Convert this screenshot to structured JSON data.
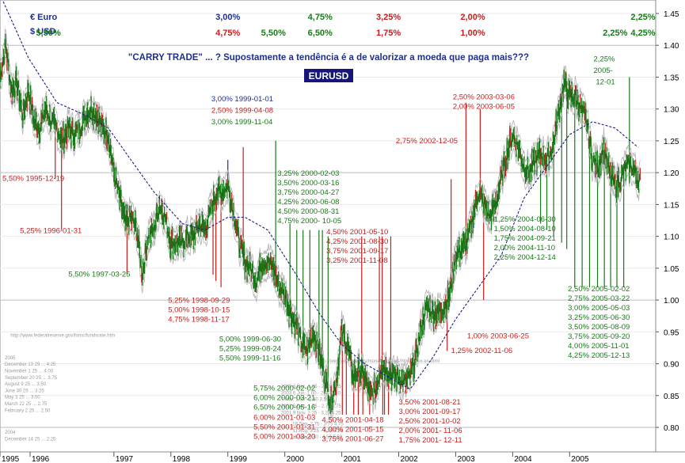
{
  "chart_data": {
    "type": "line",
    "title": "EURUSD",
    "subtitle": "\"CARRY TRADE\" ...  ? Supostamente a tendência é a de valorizar a moeda que paga mais???",
    "legend": {
      "euro": "€  Euro",
      "usd": "$  USD"
    },
    "ylim": [
      0.775,
      1.475
    ],
    "yticks": [
      "1.45",
      "1.40",
      "1.35",
      "1.30",
      "1.25",
      "1.20",
      "1.15",
      "1.10",
      "1.05",
      "1.00",
      "0.95",
      "0.90",
      "0.85",
      "0.80"
    ],
    "xticks": [
      "1995",
      "1996",
      "1997",
      "1998",
      "1999",
      "2000",
      "2001",
      "2002",
      "2003",
      "2004",
      "2005"
    ],
    "grid": true,
    "header_rates": [
      {
        "text": "5,50%",
        "t": 1995.85,
        "row": "usd",
        "color": "#1a7a1a"
      },
      {
        "text": "3,00%",
        "t": 1999.0,
        "row": "euro",
        "color": "#1e2f8e"
      },
      {
        "text": "4,75%",
        "t": 1999.0,
        "row": "usd",
        "color": "#c81e1e"
      },
      {
        "text": "5,50%",
        "t": 1999.8,
        "row": "usd",
        "color": "#1a7a1a"
      },
      {
        "text": "4,75%",
        "t": 2000.62,
        "row": "euro",
        "color": "#1a7a1a"
      },
      {
        "text": "6,50%",
        "t": 2000.62,
        "row": "usd",
        "color": "#1a7a1a"
      },
      {
        "text": "3,25%",
        "t": 2001.82,
        "row": "euro",
        "color": "#c81e1e"
      },
      {
        "text": "1,75%",
        "t": 2001.82,
        "row": "usd",
        "color": "#c81e1e"
      },
      {
        "text": "2,00%",
        "t": 2003.3,
        "row": "euro",
        "color": "#c81e1e"
      },
      {
        "text": "1,00%",
        "t": 2003.3,
        "row": "usd",
        "color": "#c81e1e"
      },
      {
        "text": "2,25%",
        "t": 2005.8,
        "row": "usd",
        "color": "#1a7a1a"
      },
      {
        "text": "2,25%",
        "t": 2006.4,
        "row": "euro",
        "color": "#1a7a1a"
      },
      {
        "text": "4,25%",
        "t": 2006.4,
        "row": "usd",
        "color": "#1a7a1a"
      }
    ],
    "price_points": [
      [
        1995.0,
        1.35
      ],
      [
        1995.1,
        1.4
      ],
      [
        1995.2,
        1.33
      ],
      [
        1995.3,
        1.34
      ],
      [
        1995.4,
        1.29
      ],
      [
        1995.5,
        1.33
      ],
      [
        1995.6,
        1.28
      ],
      [
        1995.7,
        1.27
      ],
      [
        1995.8,
        1.3
      ],
      [
        1995.9,
        1.28
      ],
      [
        1996.0,
        1.27
      ],
      [
        1996.1,
        1.25
      ],
      [
        1996.2,
        1.27
      ],
      [
        1996.3,
        1.26
      ],
      [
        1996.4,
        1.27
      ],
      [
        1996.5,
        1.29
      ],
      [
        1996.6,
        1.3
      ],
      [
        1996.7,
        1.29
      ],
      [
        1996.8,
        1.27
      ],
      [
        1996.9,
        1.26
      ],
      [
        1997.0,
        1.2
      ],
      [
        1997.1,
        1.16
      ],
      [
        1997.2,
        1.12
      ],
      [
        1997.3,
        1.13
      ],
      [
        1997.4,
        1.11
      ],
      [
        1997.5,
        1.04
      ],
      [
        1997.6,
        1.1
      ],
      [
        1997.7,
        1.11
      ],
      [
        1997.8,
        1.15
      ],
      [
        1997.9,
        1.13
      ],
      [
        1998.0,
        1.09
      ],
      [
        1998.1,
        1.09
      ],
      [
        1998.2,
        1.09
      ],
      [
        1998.3,
        1.1
      ],
      [
        1998.4,
        1.1
      ],
      [
        1998.5,
        1.12
      ],
      [
        1998.6,
        1.11
      ],
      [
        1998.7,
        1.14
      ],
      [
        1998.8,
        1.17
      ],
      [
        1998.9,
        1.17
      ],
      [
        1999.0,
        1.18
      ],
      [
        1999.1,
        1.14
      ],
      [
        1999.2,
        1.09
      ],
      [
        1999.3,
        1.06
      ],
      [
        1999.4,
        1.05
      ],
      [
        1999.5,
        1.03
      ],
      [
        1999.6,
        1.06
      ],
      [
        1999.7,
        1.06
      ],
      [
        1999.8,
        1.05
      ],
      [
        1999.9,
        1.02
      ],
      [
        2000.0,
        1.01
      ],
      [
        2000.1,
        0.98
      ],
      [
        2000.2,
        0.96
      ],
      [
        2000.3,
        0.93
      ],
      [
        2000.4,
        0.92
      ],
      [
        2000.5,
        0.95
      ],
      [
        2000.6,
        0.92
      ],
      [
        2000.7,
        0.88
      ],
      [
        2000.8,
        0.84
      ],
      [
        2000.9,
        0.87
      ],
      [
        2001.0,
        0.95
      ],
      [
        2001.1,
        0.93
      ],
      [
        2001.2,
        0.88
      ],
      [
        2001.3,
        0.89
      ],
      [
        2001.4,
        0.88
      ],
      [
        2001.5,
        0.85
      ],
      [
        2001.6,
        0.86
      ],
      [
        2001.7,
        0.9
      ],
      [
        2001.8,
        0.89
      ],
      [
        2001.9,
        0.88
      ],
      [
        2002.0,
        0.88
      ],
      [
        2002.1,
        0.87
      ],
      [
        2002.2,
        0.88
      ],
      [
        2002.3,
        0.91
      ],
      [
        2002.4,
        0.96
      ],
      [
        2002.5,
        0.99
      ],
      [
        2002.6,
        0.98
      ],
      [
        2002.7,
        0.98
      ],
      [
        2002.8,
        0.99
      ],
      [
        2002.9,
        1.01
      ],
      [
        2003.0,
        1.07
      ],
      [
        2003.1,
        1.08
      ],
      [
        2003.2,
        1.09
      ],
      [
        2003.3,
        1.13
      ],
      [
        2003.4,
        1.17
      ],
      [
        2003.5,
        1.15
      ],
      [
        2003.6,
        1.13
      ],
      [
        2003.7,
        1.15
      ],
      [
        2003.8,
        1.19
      ],
      [
        2003.9,
        1.23
      ],
      [
        2004.0,
        1.26
      ],
      [
        2004.1,
        1.24
      ],
      [
        2004.2,
        1.21
      ],
      [
        2004.3,
        1.2
      ],
      [
        2004.4,
        1.22
      ],
      [
        2004.5,
        1.23
      ],
      [
        2004.6,
        1.22
      ],
      [
        2004.7,
        1.24
      ],
      [
        2004.8,
        1.29
      ],
      [
        2004.9,
        1.34
      ],
      [
        2005.0,
        1.32
      ],
      [
        2005.1,
        1.32
      ],
      [
        2005.2,
        1.3
      ],
      [
        2005.3,
        1.28
      ],
      [
        2005.4,
        1.22
      ],
      [
        2005.5,
        1.21
      ],
      [
        2005.6,
        1.24
      ],
      [
        2005.7,
        1.2
      ],
      [
        2005.8,
        1.18
      ],
      [
        2005.9,
        1.19
      ],
      [
        2006.0,
        1.21
      ],
      [
        2006.1,
        1.21
      ],
      [
        2006.2,
        1.19
      ],
      [
        2006.25,
        1.19
      ]
    ],
    "moving_average": [
      [
        1995.0,
        1.48
      ],
      [
        1995.5,
        1.38
      ],
      [
        1996.0,
        1.31
      ],
      [
        1996.5,
        1.29
      ],
      [
        1996.9,
        1.27
      ],
      [
        1997.3,
        1.22
      ],
      [
        1997.7,
        1.17
      ],
      [
        1998.2,
        1.12
      ],
      [
        1998.6,
        1.11
      ],
      [
        1999.0,
        1.13
      ],
      [
        1999.3,
        1.13
      ],
      [
        1999.7,
        1.11
      ],
      [
        2000.2,
        1.04
      ],
      [
        2000.6,
        0.98
      ],
      [
        2001.0,
        0.93
      ],
      [
        2001.4,
        0.9
      ],
      [
        2001.8,
        0.88
      ],
      [
        2002.2,
        0.86
      ],
      [
        2002.6,
        0.91
      ],
      [
        2003.0,
        0.97
      ],
      [
        2003.4,
        1.02
      ],
      [
        2003.8,
        1.07
      ],
      [
        2004.2,
        1.16
      ],
      [
        2004.6,
        1.21
      ],
      [
        2005.0,
        1.26
      ],
      [
        2005.4,
        1.28
      ],
      [
        2005.8,
        1.27
      ],
      [
        2006.2,
        1.24
      ]
    ],
    "rate_lines": [
      {
        "t": 1995.97,
        "y": 1.19,
        "color": "#c81e1e"
      },
      {
        "t": 1996.08,
        "y": 1.11,
        "color": "#c81e1e"
      },
      {
        "t": 1997.23,
        "y": 1.04,
        "color": "#c81e1e"
      },
      {
        "t": 1998.74,
        "y": 1.04,
        "color": "#c81e1e"
      },
      {
        "t": 1998.79,
        "y": 1.03,
        "color": "#c81e1e"
      },
      {
        "t": 1998.88,
        "y": 1.02,
        "color": "#c81e1e"
      },
      {
        "t": 1999.0,
        "y": 1.22,
        "color": "#1e2f8e"
      },
      {
        "t": 1999.27,
        "y": 1.24,
        "color": "#c81e1e"
      },
      {
        "t": 1999.84,
        "y": 1.25,
        "color": "#1a7a1a"
      },
      {
        "t": 2000.09,
        "y": 1.12,
        "color": "#1a7a1a"
      },
      {
        "t": 2000.21,
        "y": 1.11,
        "color": "#1a7a1a"
      },
      {
        "t": 2000.32,
        "y": 1.11,
        "color": "#1a7a1a"
      },
      {
        "t": 2000.44,
        "y": 1.11,
        "color": "#1a7a1a"
      },
      {
        "t": 2000.6,
        "y": 1.11,
        "color": "#1a7a1a"
      },
      {
        "t": 2000.66,
        "y": 1.11,
        "color": "#1a7a1a"
      },
      {
        "t": 2000.76,
        "y": 1.1,
        "color": "#1a7a1a"
      },
      {
        "t": 2001.35,
        "y": 1.1,
        "color": "#c81e1e"
      },
      {
        "t": 2001.66,
        "y": 1.1,
        "color": "#c81e1e"
      },
      {
        "t": 2001.71,
        "y": 1.1,
        "color": "#c81e1e"
      },
      {
        "t": 2001.86,
        "y": 1.1,
        "color": "#c81e1e"
      },
      {
        "t": 2001.01,
        "y": 0.82,
        "color": "#c81e1e"
      },
      {
        "t": 2001.08,
        "y": 0.82,
        "color": "#c81e1e"
      },
      {
        "t": 2001.21,
        "y": 0.82,
        "color": "#c81e1e"
      },
      {
        "t": 2001.29,
        "y": 0.82,
        "color": "#c81e1e"
      },
      {
        "t": 2001.37,
        "y": 0.82,
        "color": "#c81e1e"
      },
      {
        "t": 2001.49,
        "y": 0.82,
        "color": "#c81e1e"
      },
      {
        "t": 2001.72,
        "y": 0.82,
        "color": "#c81e1e"
      },
      {
        "t": 2001.75,
        "y": 0.82,
        "color": "#c81e1e"
      },
      {
        "t": 2001.82,
        "y": 0.82,
        "color": "#c81e1e"
      },
      {
        "t": 2002.92,
        "y": 1.19,
        "color": "#c81e1e"
      },
      {
        "t": 2002.85,
        "y": 0.92,
        "color": "#c81e1e"
      },
      {
        "t": 2003.18,
        "y": 1.31,
        "color": "#c81e1e"
      },
      {
        "t": 2003.43,
        "y": 1.3,
        "color": "#c81e1e"
      },
      {
        "t": 2003.49,
        "y": 1.0,
        "color": "#c81e1e"
      },
      {
        "t": 2004.49,
        "y": 1.12,
        "color": "#1a7a1a"
      },
      {
        "t": 2004.6,
        "y": 1.11,
        "color": "#1a7a1a"
      },
      {
        "t": 2004.72,
        "y": 1.1,
        "color": "#1a7a1a"
      },
      {
        "t": 2004.86,
        "y": 1.09,
        "color": "#1a7a1a"
      },
      {
        "t": 2004.95,
        "y": 1.08,
        "color": "#1a7a1a"
      },
      {
        "t": 2005.09,
        "y": 1.02,
        "color": "#1a7a1a"
      },
      {
        "t": 2005.22,
        "y": 1.02,
        "color": "#1a7a1a"
      },
      {
        "t": 2005.35,
        "y": 1.02,
        "color": "#1a7a1a"
      },
      {
        "t": 2005.49,
        "y": 1.02,
        "color": "#1a7a1a"
      },
      {
        "t": 2005.61,
        "y": 1.02,
        "color": "#1a7a1a"
      },
      {
        "t": 2005.72,
        "y": 1.02,
        "color": "#1a7a1a"
      },
      {
        "t": 2005.83,
        "y": 1.02,
        "color": "#1a7a1a"
      },
      {
        "t": 2005.95,
        "y": 1.02,
        "color": "#1a7a1a"
      },
      {
        "t": 2006.05,
        "y": 1.35,
        "color": "#1a7a1a"
      }
    ],
    "annotations": [
      {
        "t": 1994.98,
        "y": 1.187,
        "color": "#c81e1e",
        "lines": [
          "5,50%  1995-12-19"
        ]
      },
      {
        "t": 1995.35,
        "y": 1.105,
        "color": "#c81e1e",
        "lines": [
          "5,25%  1996-01-31"
        ]
      },
      {
        "t": 1996.2,
        "y": 1.037,
        "color": "#1a7a1a",
        "lines": [
          "5,50%  1997-03-25"
        ]
      },
      {
        "t": 2001.54,
        "y": 1.312,
        "color": "#1e2f8e",
        "lines": [
          "3,00%  1999-01-01"
        ],
        "align": "left",
        "tx": 1998.71
      },
      {
        "t": 1998.71,
        "y": 1.294,
        "color": "#c81e1e",
        "lines": [
          "2,50%  1999-04-08"
        ]
      },
      {
        "t": 1998.71,
        "y": 1.276,
        "color": "#1a7a1a",
        "lines": [
          "3,00%  1999-11-04"
        ]
      },
      {
        "t": 1997.95,
        "y": 0.996,
        "color": "#c81e1e",
        "lines": [
          "5,25%  1998-09-29",
          "5,00%  1998-10-15",
          "4,75%  1998-11-17"
        ]
      },
      {
        "t": 1998.85,
        "y": 0.935,
        "color": "#1a7a1a",
        "lines": [
          "5,00%  1999-06-30",
          "5,25%  1999-08-24",
          "5,50%  1999-11-16"
        ]
      },
      {
        "t": 1999.87,
        "y": 1.195,
        "color": "#1a7a1a",
        "lines": [
          "3,25%  2000-02-03",
          "3,50%  2000-03-16",
          "3,75%  2000-04-27",
          "4,25%  2000-06-08",
          "4,50%  2000-08-31",
          "4,75%  2000- 10-05"
        ]
      },
      {
        "t": 2000.73,
        "y": 1.103,
        "color": "#c81e1e",
        "lines": [
          "4,50%  2001-05-10",
          "4,25%  2001-08-30",
          "3,75%  2001-09-17",
          "3,25%  2001-11-08"
        ]
      },
      {
        "t": 1999.45,
        "y": 0.858,
        "color": "#1a7a1a",
        "lines": [
          "5,75%  2000-02-02",
          "6,00%  2000-03-21",
          "6,50%  2000-05-16"
        ]
      },
      {
        "t": 1999.45,
        "y": 0.812,
        "color": "#c81e1e",
        "lines": [
          "6,00%  2001-01-03",
          "5,50%  2001-01-31",
          "5,00%  2001-03-20"
        ]
      },
      {
        "t": 2000.65,
        "y": 0.808,
        "color": "#c81e1e",
        "lines": [
          "4,50%  2001-04-18",
          "4,00%  2001-05-15",
          "3,75%  2001-06-27"
        ]
      },
      {
        "t": 2002.0,
        "y": 0.836,
        "color": "#c81e1e",
        "lines": [
          "3,50%  2001-08-21",
          "3,00%  2001-09-17",
          "2,50%  2001-10-02",
          "2,00%  2001- 11-06",
          "1,75%  2001- 12-11"
        ]
      },
      {
        "t": 2001.95,
        "y": 1.246,
        "color": "#c81e1e",
        "lines": [
          "2,75%  2002-12-05"
        ]
      },
      {
        "t": 2002.95,
        "y": 1.315,
        "color": "#c81e1e",
        "lines": [
          "2,50%  2003-03-06",
          "2,00%  2003-06-05"
        ]
      },
      {
        "t": 2002.92,
        "y": 0.917,
        "color": "#c81e1e",
        "lines": [
          "1,25%  2002-11-06"
        ]
      },
      {
        "t": 2003.2,
        "y": 0.94,
        "color": "#c81e1e",
        "lines": [
          "1,00%  2003-06-25"
        ]
      },
      {
        "t": 2003.67,
        "y": 1.123,
        "color": "#1a7a1a",
        "lines": [
          "1,25%  2004-06-30",
          "1,50%  2004-08-10",
          "1,75%  2004-09-21",
          "2,00%  2004-11-10",
          "2,25%  2004-12-14"
        ]
      },
      {
        "t": 2004.97,
        "y": 1.014,
        "color": "#1a7a1a",
        "lines": [
          "2,50%  2005-02-02",
          "2,75%  2005-03-22",
          "3,00%  2005-05-03",
          "3,25%  2005-06-30",
          "3,50%  2005-08-09",
          "3,75%  2005-09-20",
          "4,00%  2005-11-01",
          "4,25%  2005-12-13"
        ]
      },
      {
        "t": 2005.42,
        "y": 1.375,
        "color": "#1a7a1a",
        "lines": [
          "2,25%"
        ]
      },
      {
        "t": 2005.42,
        "y": 1.357,
        "color": "#1a7a1a",
        "lines": [
          "2005-"
        ]
      },
      {
        "t": 2005.46,
        "y": 1.339,
        "color": "#1a7a1a",
        "lines": [
          "12-01"
        ]
      }
    ],
    "faint_notes": [
      {
        "t": 1995.1,
        "y": 0.942,
        "lines": [
          "http://www.federalreserve.gov/fomc/fundsrate.htm"
        ]
      },
      {
        "t": 1995.0,
        "y": 0.907,
        "lines": [
          "2005",
          "December 13 29 ... 4.25",
          "November 1 25 ... 4.00",
          "September 20 25 ... 3.75",
          "August 9 25 ... 3.50",
          "June 30 25 ... 3.25",
          "May 3 25 ... 3.00",
          "March 22 25 ... 2.75",
          "February 2 25 ... 2.50"
        ]
      },
      {
        "t": 1995.0,
        "y": 0.79,
        "lines": [
          "2004",
          "December 14 25 ... 2.25"
        ]
      },
      {
        "t": 2000.5,
        "y": 0.902,
        "lines": [
          "http://www.ecb.int/stats/monetary/rates/html/index.en.html"
        ]
      },
      {
        "t": 1999.85,
        "y": 0.862,
        "lines": [
          "2005 6 Dec. 1.25 - 2.25  3.25",
          "2003 6 Jun. 1.00 - 2.00  3.00",
          "7 Mar. 1.50 - 2.50  3.50",
          "2002 6 Dec. 1.75 - 2.75  3.75",
          "2001 9 Nov. 2.25 - 3.25  4.25"
        ]
      },
      {
        "t": 2000.05,
        "y": 0.803,
        "lines": [
          "18 Sep. 2.75 - 3.75  4.75",
          "31 Aug. 3.25 - 4.25  5.25",
          "11 May 3.50 - 4.50  5.50"
        ]
      }
    ]
  }
}
